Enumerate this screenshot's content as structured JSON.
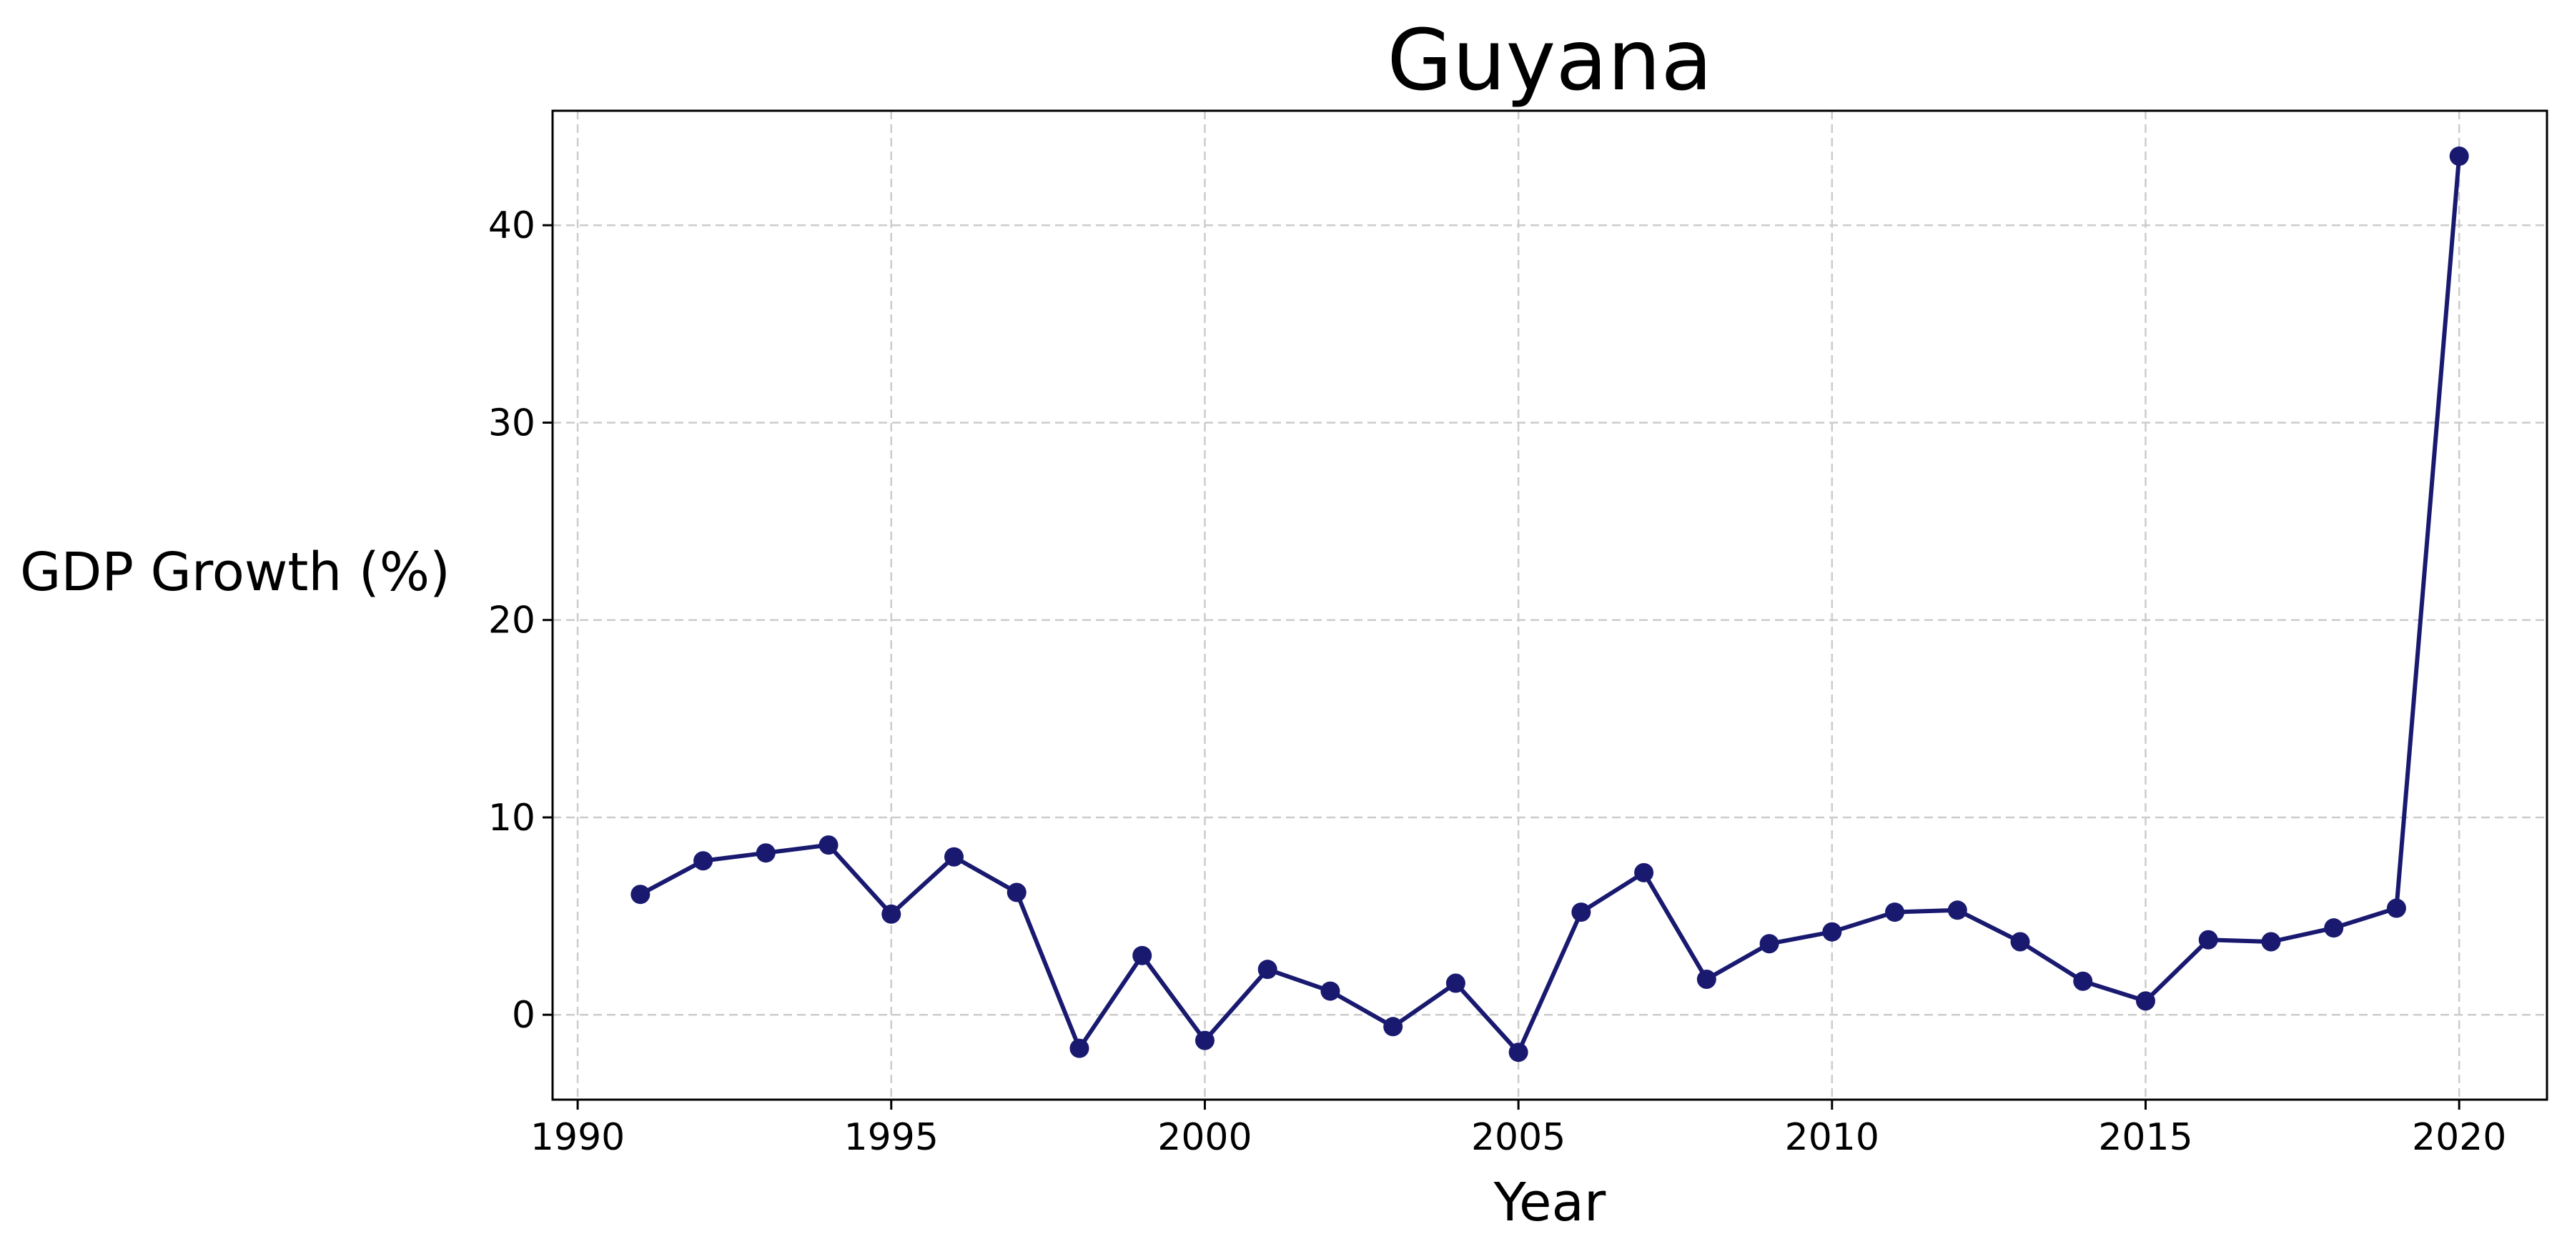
{
  "chart_data": {
    "type": "line",
    "title": "Guyana",
    "xlabel": "Year",
    "ylabel": "GDP Growth (%)",
    "xlim": [
      1989.6,
      2021.4
    ],
    "ylim": [
      -4.3,
      45.8
    ],
    "xticks": [
      1990,
      1995,
      2000,
      2005,
      2010,
      2015,
      2020
    ],
    "yticks": [
      0,
      10,
      20,
      30,
      40
    ],
    "grid": true,
    "legend": "none",
    "series": [
      {
        "color": "#191970",
        "marker": "circle",
        "x": [
          1991,
          1992,
          1993,
          1994,
          1995,
          1996,
          1997,
          1998,
          1999,
          2000,
          2001,
          2002,
          2003,
          2004,
          2005,
          2006,
          2007,
          2008,
          2009,
          2010,
          2011,
          2012,
          2013,
          2014,
          2015,
          2016,
          2017,
          2018,
          2019,
          2020
        ],
        "values": [
          6.1,
          7.8,
          8.2,
          8.6,
          5.1,
          8.0,
          6.2,
          -1.7,
          3.0,
          -1.3,
          2.3,
          1.2,
          -0.6,
          1.6,
          -1.9,
          5.2,
          7.2,
          1.8,
          3.6,
          4.2,
          5.2,
          5.3,
          3.7,
          1.7,
          0.7,
          3.8,
          3.7,
          4.4,
          5.4,
          43.5
        ]
      }
    ]
  }
}
